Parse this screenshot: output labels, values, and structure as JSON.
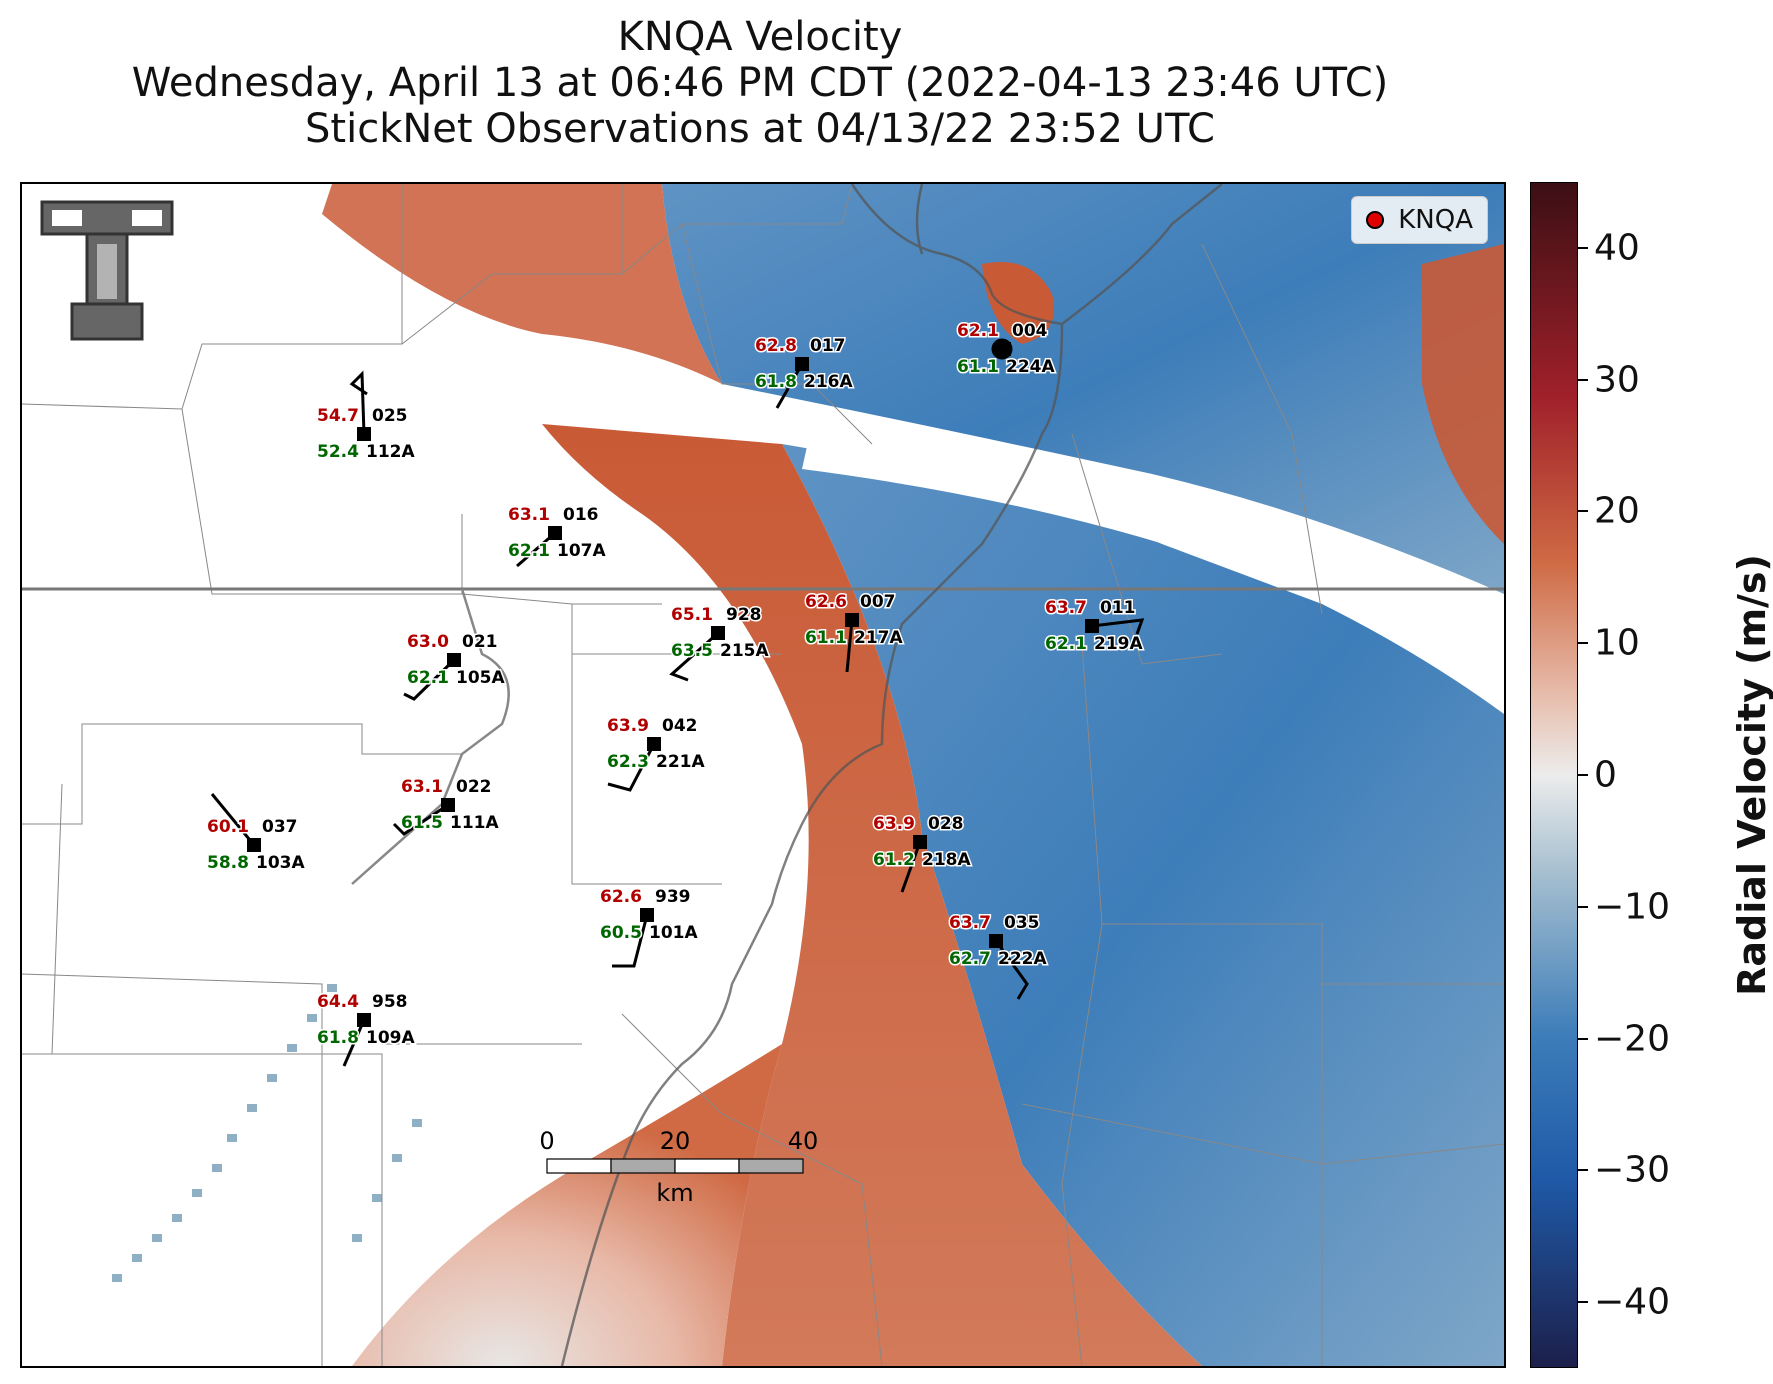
{
  "title": {
    "line1": "KNQA Velocity",
    "line2": "Wednesday, April 13 at 06:46 PM CDT (2022-04-13 23:46 UTC)",
    "line3": "StickNet Observations at 04/13/22 23:52 UTC"
  },
  "legend": {
    "label": "KNQA",
    "marker_color": "#e00000"
  },
  "logo": {
    "text": "TT"
  },
  "colorbar": {
    "title": "Radial Velocity (m/s)",
    "ticks": [
      "40",
      "30",
      "20",
      "10",
      "0",
      "−10",
      "−20",
      "−30",
      "−40"
    ],
    "range": [
      -45,
      45
    ]
  },
  "scalebar": {
    "labels": [
      "0",
      "20",
      "40"
    ],
    "unit": "km"
  },
  "stations": [
    {
      "id": "025",
      "sub": "112A",
      "t": "54.7",
      "td": "52.4"
    },
    {
      "id": "016",
      "sub": "107A",
      "t": "63.1",
      "td": "62.1"
    },
    {
      "id": "017",
      "sub": "216A",
      "t": "62.8",
      "td": "61.8"
    },
    {
      "id": "004",
      "sub": "224A",
      "t": "62.1",
      "td": "61.1"
    },
    {
      "id": "021",
      "sub": "105A",
      "t": "63.0",
      "td": "62.1"
    },
    {
      "id": "928",
      "sub": "215A",
      "t": "65.1",
      "td": "63.5"
    },
    {
      "id": "007",
      "sub": "217A",
      "t": "62.6",
      "td": "61.1"
    },
    {
      "id": "011",
      "sub": "219A",
      "t": "63.7",
      "td": "62.1"
    },
    {
      "id": "042",
      "sub": "221A",
      "t": "63.9",
      "td": "62.3"
    },
    {
      "id": "022",
      "sub": "111A",
      "t": "63.1",
      "td": "61.5"
    },
    {
      "id": "037",
      "sub": "103A",
      "t": "60.1",
      "td": "58.8"
    },
    {
      "id": "028",
      "sub": "218A",
      "t": "63.9",
      "td": "61.2"
    },
    {
      "id": "939",
      "sub": "101A",
      "t": "62.6",
      "td": "60.5"
    },
    {
      "id": "035",
      "sub": "222A",
      "t": "63.7",
      "td": "62.7"
    },
    {
      "id": "958",
      "sub": "109A",
      "t": "64.4",
      "td": "61.8"
    }
  ],
  "colors": {
    "inbound": "#3a7ab8",
    "outbound": "#cc5533",
    "temperature": "#b00000",
    "dewpoint": "#006600"
  }
}
